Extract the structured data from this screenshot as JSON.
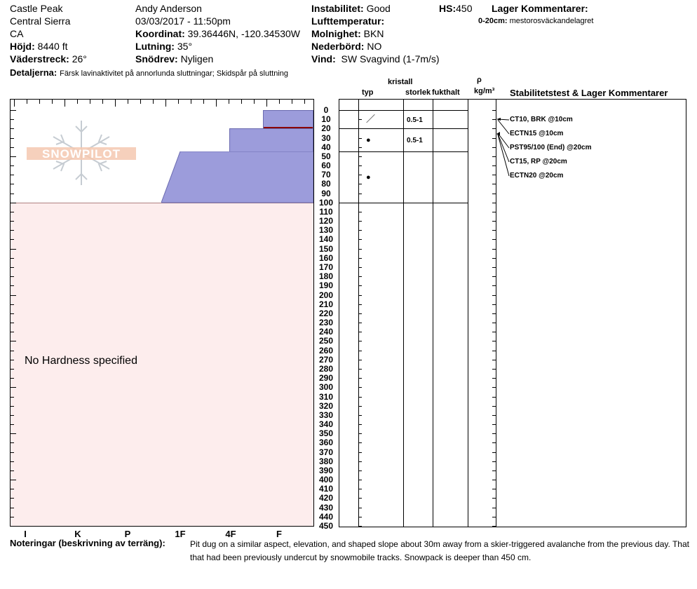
{
  "site": {
    "name": "Castle Peak",
    "range": "Central Sierra",
    "state": "CA",
    "elevation_label": "Höjd:",
    "elevation": "8440 ft",
    "aspect_label": "Väderstreck:",
    "aspect": "26°",
    "details_label": "Detaljerna:",
    "details": "Färsk lavinaktivitet på annorlunda sluttningar; Skidspår på sluttning"
  },
  "observer": {
    "name": "Andy Anderson",
    "datetime": "03/03/2017 - 11:50pm",
    "coord_label": "Koordinat:",
    "coord": "39.36446N, -120.34530W",
    "incline_label": "Lutning:",
    "incline": "35°",
    "drift_label": "Snödrev:",
    "drift": "Nyligen"
  },
  "conditions": {
    "instability_label": "Instabilitet:",
    "instability": "Good",
    "airtemp_label": "Lufttemperatur:",
    "sky_label": "Molnighet:",
    "sky": "BKN",
    "precip_label": "Nederbörd:",
    "precip": "NO",
    "wind_label": "Vind:",
    "wind": "SW Svagvind (1-7m/s)",
    "hs_label": "HS:",
    "hs": "450",
    "layer_comments_label": "Lager Kommentarer:",
    "layer_comment_depth": "0-20cm:",
    "layer_comment": "mestorosväckandelagret"
  },
  "table_headers": {
    "crystal": "kristall",
    "type": "typ",
    "size": "storlek",
    "moisture": "fukthalt",
    "rho": "ρ",
    "density_unit": "kg/m³",
    "stability": "Stabilitetstest & Lager Kommentarer"
  },
  "logo_text": "SNOWPILOT",
  "no_hardness": "No Hardness specified",
  "hardness_scale": [
    "I",
    "K",
    "P",
    "1F",
    "4F",
    "F"
  ],
  "depth_labels": [
    "0",
    "10",
    "20",
    "30",
    "40",
    "50",
    "60",
    "70",
    "80",
    "90",
    "100",
    "110",
    "120",
    "130",
    "140",
    "150",
    "160",
    "170",
    "180",
    "190",
    "200",
    "210",
    "220",
    "230",
    "240",
    "250",
    "260",
    "270",
    "280",
    "290",
    "300",
    "310",
    "320",
    "330",
    "340",
    "350",
    "360",
    "370",
    "380",
    "390",
    "400",
    "410",
    "420",
    "430",
    "440",
    "450"
  ],
  "layers": [
    {
      "top_cm": 0,
      "bottom_cm": 20,
      "size": "0.5-1",
      "type_symbol": "／"
    },
    {
      "top_cm": 20,
      "bottom_cm": 45,
      "size": "0.5-1",
      "type_symbol": "●"
    },
    {
      "top_cm": 45,
      "bottom_cm": 100,
      "size": "",
      "type_symbol": "●"
    }
  ],
  "stability_tests": [
    "CT10, BRK @10cm",
    "ECTN15 @10cm",
    "PST95/100 (End) @20cm",
    "CT15, RP @20cm",
    "ECTN20 @20cm"
  ],
  "notes": {
    "label": "Noteringar (beskrivning av terräng):",
    "line1": "Pit dug on a similar aspect, elevation, and shaped slope about 30m away from a skier-triggered avalanche from the previous day. That",
    "line2": "that had been previously undercut by snowmobile tracks. Snowpack is deeper than 450 cm."
  },
  "colors": {
    "layer_fill": "#9c9cdb",
    "below_fill": "#fdeded",
    "weak_layer": "#8b0000"
  }
}
